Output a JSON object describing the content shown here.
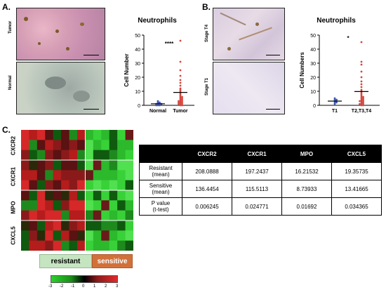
{
  "panels": {
    "a": {
      "label": "A.",
      "image_labels": [
        "Tumor",
        "Normal"
      ],
      "chart": {
        "title": "Neutrophils",
        "ylabel": "Cell Number",
        "yticks": [
          "0",
          "10",
          "20",
          "30",
          "40",
          "50"
        ],
        "categories": [
          "Normal",
          "Tumor"
        ],
        "significance": "****"
      }
    },
    "b": {
      "label": "B.",
      "image_labels": [
        "Stage T4",
        "Stage T1"
      ],
      "chart": {
        "title": "Neutrophils",
        "ylabel": "Cell Numbers",
        "yticks": [
          "0",
          "10",
          "20",
          "30",
          "40",
          "50"
        ],
        "categories": [
          "T1",
          "T2,T3,T4"
        ],
        "significance": "*"
      }
    },
    "c": {
      "label": "C.",
      "heatmap_rows": [
        "CXCR2",
        "CXCR1",
        "MPO",
        "CXCL5"
      ],
      "groups": {
        "resistant": "resistant",
        "sensitive": "sensitive"
      },
      "scale_ticks": [
        "-3",
        "-2",
        "-1",
        "0",
        "1",
        "2",
        "3"
      ]
    }
  },
  "colors": {
    "resistant_bar": "#c5e5c1",
    "sensitive_bar": "#d1713a",
    "tumor_points": "#d4463c",
    "normal_points": "#3c54b0"
  },
  "table": {
    "headers": [
      "",
      "CXCR2",
      "CXCR1",
      "MPO",
      "CXCL5"
    ],
    "rows": [
      {
        "label": [
          "Resistant",
          "(mean)"
        ],
        "values": [
          "208.0888",
          "197.2437",
          "16.21532",
          "19.35735"
        ]
      },
      {
        "label": [
          "Sensitive",
          "(mean)"
        ],
        "values": [
          "136.4454",
          "115.5113",
          "8.73933",
          "13.41665"
        ]
      },
      {
        "label": [
          "P value",
          "(t-test)"
        ],
        "values": [
          "0.006245",
          "0.024771",
          "0.01692",
          "0.034365"
        ]
      }
    ]
  },
  "chart_data": [
    {
      "type": "scatter",
      "title": "Neutrophils",
      "ylabel": "Cell Number",
      "categories": [
        "Normal",
        "Tumor"
      ],
      "ylim": [
        0,
        50
      ],
      "series": [
        {
          "name": "Normal",
          "values": [
            0,
            0,
            0,
            1,
            1,
            1,
            1,
            2,
            2,
            3
          ]
        },
        {
          "name": "Tumor",
          "values": [
            0,
            0,
            1,
            1,
            1,
            2,
            2,
            2,
            3,
            3,
            3,
            4,
            4,
            5,
            5,
            6,
            6,
            7,
            8,
            9,
            10,
            11,
            12,
            14,
            16,
            18,
            21,
            25,
            31,
            46
          ]
        }
      ]
    },
    {
      "type": "scatter",
      "title": "Neutrophils",
      "ylabel": "Cell Numbers",
      "categories": [
        "T1",
        "T2,T3,T4"
      ],
      "ylim": [
        0,
        50
      ],
      "series": [
        {
          "name": "T1",
          "values": [
            1,
            2,
            2,
            3,
            3,
            4,
            4,
            5
          ]
        },
        {
          "name": "T2,T3,T4",
          "values": [
            0,
            0,
            1,
            1,
            1,
            2,
            2,
            3,
            3,
            3,
            4,
            4,
            5,
            5,
            6,
            6,
            7,
            8,
            9,
            10,
            11,
            13,
            15,
            17,
            20,
            24,
            29,
            31,
            45
          ]
        }
      ]
    }
  ]
}
